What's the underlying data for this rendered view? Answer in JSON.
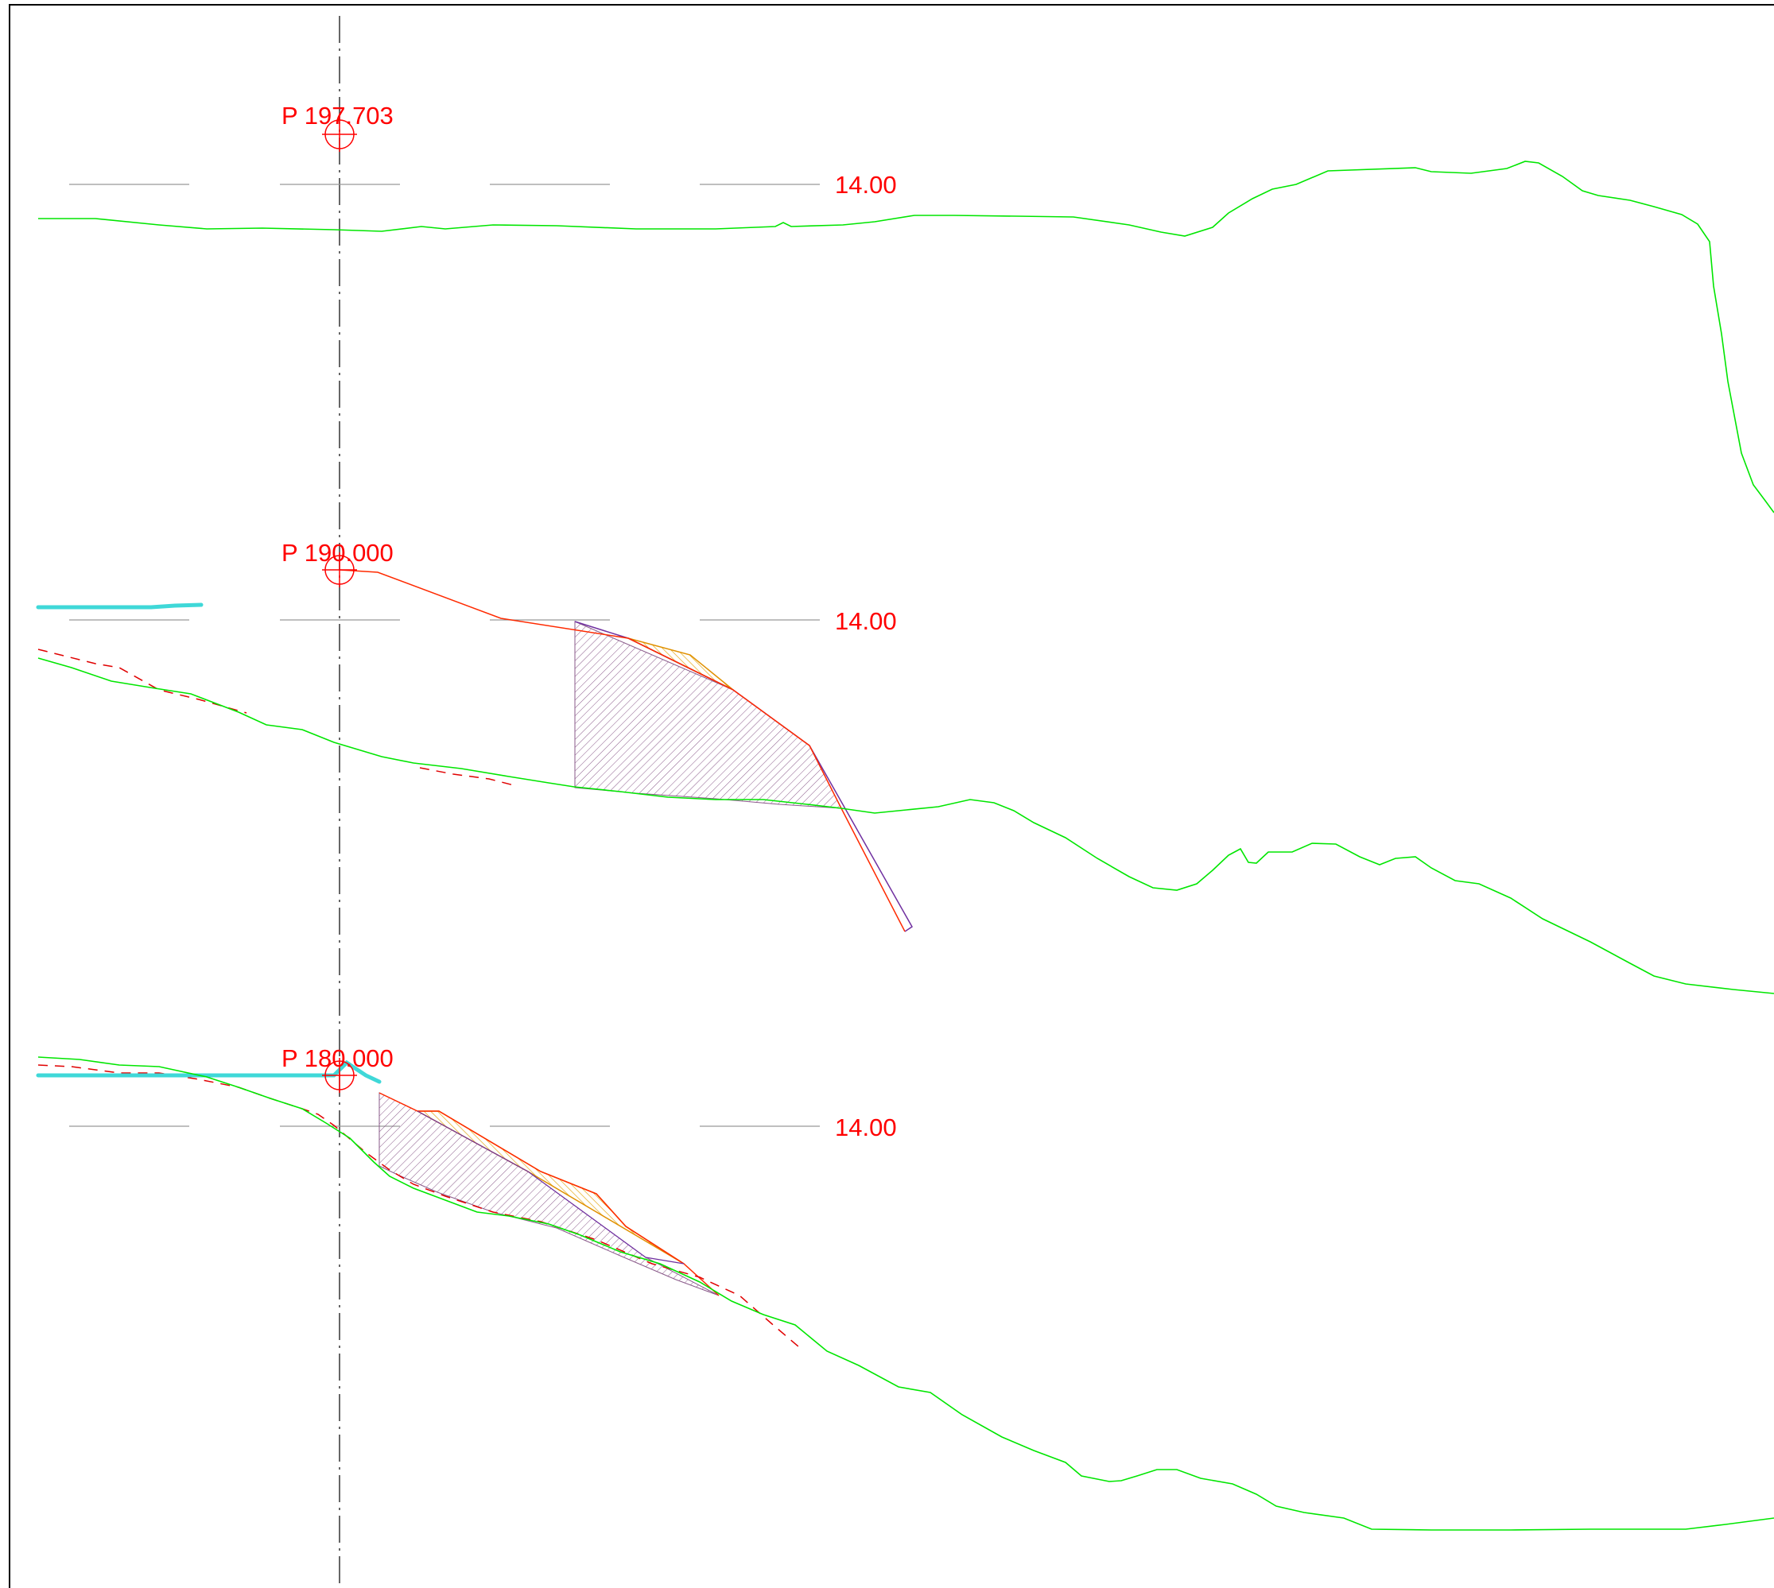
{
  "drawing": {
    "sections": [
      {
        "id": "s1",
        "station_label": "P 197.703",
        "elevation_label": "14.00"
      },
      {
        "id": "s2",
        "station_label": "P 190.000",
        "elevation_label": "14.00"
      },
      {
        "id": "s3",
        "station_label": "P 180.000",
        "elevation_label": "14.00"
      }
    ],
    "colors": {
      "terrain": "#00e600",
      "design": "#ff2a00",
      "reference_dashed": "#e00000",
      "cyan_marker": "#3fd8d8",
      "centerline": "#333333",
      "cut_hatch": "#8a5a8a",
      "fill_hatch": "#e0a000",
      "datum": "#999999",
      "label": "#ff0000",
      "frame": "#000000"
    }
  }
}
